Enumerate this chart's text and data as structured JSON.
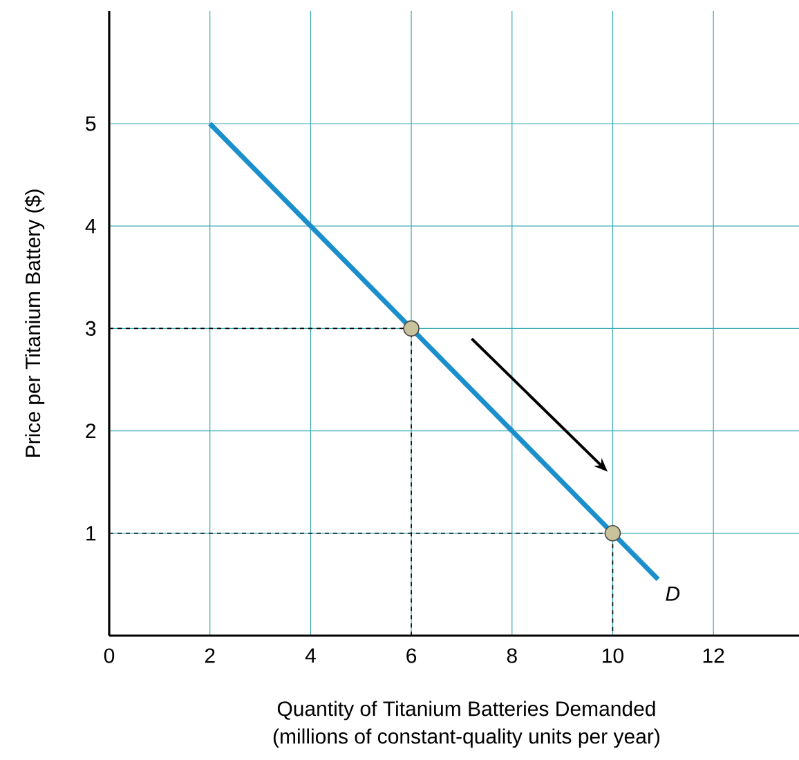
{
  "chart_data": {
    "type": "line",
    "xlabel": "Quantity of Titanium Batteries Demanded",
    "ylabel": "Price per Titanium Battery ($)",
    "annotations": [
      "(millions of constant-quality units per year)"
    ],
    "xlim": [
      0,
      13.7
    ],
    "ylim": [
      0,
      6.1
    ],
    "xticks": [
      0,
      2,
      4,
      6,
      8,
      10,
      12
    ],
    "yticks": [
      1,
      2,
      3,
      4,
      5
    ],
    "grid": true,
    "series": [
      {
        "color": "#000000",
        "line_style": "dashed",
        "marker": "none",
        "x": [
          0,
          6,
          6
        ],
        "values": [
          3,
          3,
          0
        ]
      },
      {
        "color": "#000000",
        "line_style": "dashed",
        "marker": "none",
        "x": [
          0,
          10,
          10
        ],
        "values": [
          1,
          1,
          0
        ]
      },
      {
        "name": "D",
        "color": "#1a8fcc",
        "line_style": "solid",
        "marker": "none",
        "x": [
          2,
          10.9
        ],
        "values": [
          5,
          0.55
        ]
      },
      {
        "type": "scatter",
        "color": "#c8c39a",
        "marker": "circle",
        "x": [
          6,
          10
        ],
        "values": [
          3,
          1
        ]
      }
    ]
  }
}
